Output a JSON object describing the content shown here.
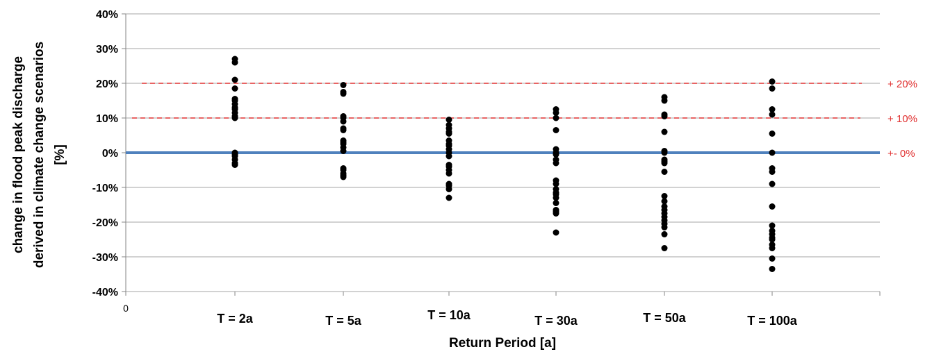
{
  "chart_data": {
    "type": "scatter",
    "xlabel": "Return Period [a]",
    "ylabel_lines": [
      "change in flood peak discharge",
      "derived in climate change scenarios",
      "[%]"
    ],
    "x_origin_label": "0",
    "ylim": [
      -40,
      40
    ],
    "y_ticks": [
      40,
      30,
      20,
      10,
      0,
      -10,
      -20,
      -30,
      -40
    ],
    "y_tick_labels": [
      "40%",
      "30%",
      "20%",
      "10%",
      "0%",
      "-10%",
      "-20%",
      "-30%",
      "-40%"
    ],
    "grid": true,
    "categories": [
      "T = 2a",
      "T = 5a",
      "T = 10a",
      "T = 30a",
      "T = 50a",
      "T = 100a"
    ],
    "series": [
      {
        "category": "T = 2a",
        "values": [
          27,
          26,
          21,
          18.5,
          15.5,
          15,
          14,
          13,
          12.5,
          11.5,
          10.5,
          10,
          0,
          -0.5,
          -1,
          -2,
          -3,
          -3.5
        ]
      },
      {
        "category": "T = 5a",
        "values": [
          19.5,
          17.5,
          17,
          10.5,
          10,
          9,
          7,
          6.5,
          3.5,
          3,
          2.5,
          1.5,
          0.5,
          -4.5,
          -5,
          -6,
          -6.5,
          -7
        ]
      },
      {
        "category": "T = 10a",
        "values": [
          9.5,
          8,
          7,
          6,
          5.5,
          3.5,
          2.5,
          2,
          1,
          0,
          -1,
          -3.5,
          -4,
          -5,
          -6,
          -9,
          -9.5,
          -10.5,
          -13
        ]
      },
      {
        "category": "T = 30a",
        "values": [
          12.5,
          11.5,
          10,
          6.5,
          1,
          0,
          -0.5,
          -2,
          -3,
          -8,
          -9,
          -10.5,
          -11.5,
          -12,
          -13,
          -14.5,
          -16.5,
          -17,
          -17.5,
          -23
        ]
      },
      {
        "category": "T = 50a",
        "values": [
          16,
          15,
          11,
          10.5,
          6,
          0.5,
          0,
          -2,
          -2.5,
          -3,
          -5.5,
          -12.5,
          -14,
          -15.5,
          -16.5,
          -17.5,
          -18.5,
          -19.5,
          -20.5,
          -21.5,
          -23.5,
          -27.5
        ]
      },
      {
        "category": "T = 100a",
        "values": [
          20.5,
          18.5,
          12.5,
          11,
          5.5,
          0,
          -4.5,
          -5.5,
          -9,
          -15.5,
          -21,
          -22.5,
          -23.5,
          -24.5,
          -25,
          -26.5,
          -27.5,
          -30.5,
          -33.5
        ]
      }
    ],
    "reference_lines": [
      {
        "value": 20,
        "label": "+ 20%",
        "color": "#e03030",
        "style": "dashed"
      },
      {
        "value": 10,
        "label": "+ 10%",
        "color": "#e03030",
        "style": "dashed"
      },
      {
        "value": 0,
        "label": "+- 0%",
        "color": "#4f81bd",
        "style": "solid"
      }
    ],
    "marker_color": "#000000"
  }
}
